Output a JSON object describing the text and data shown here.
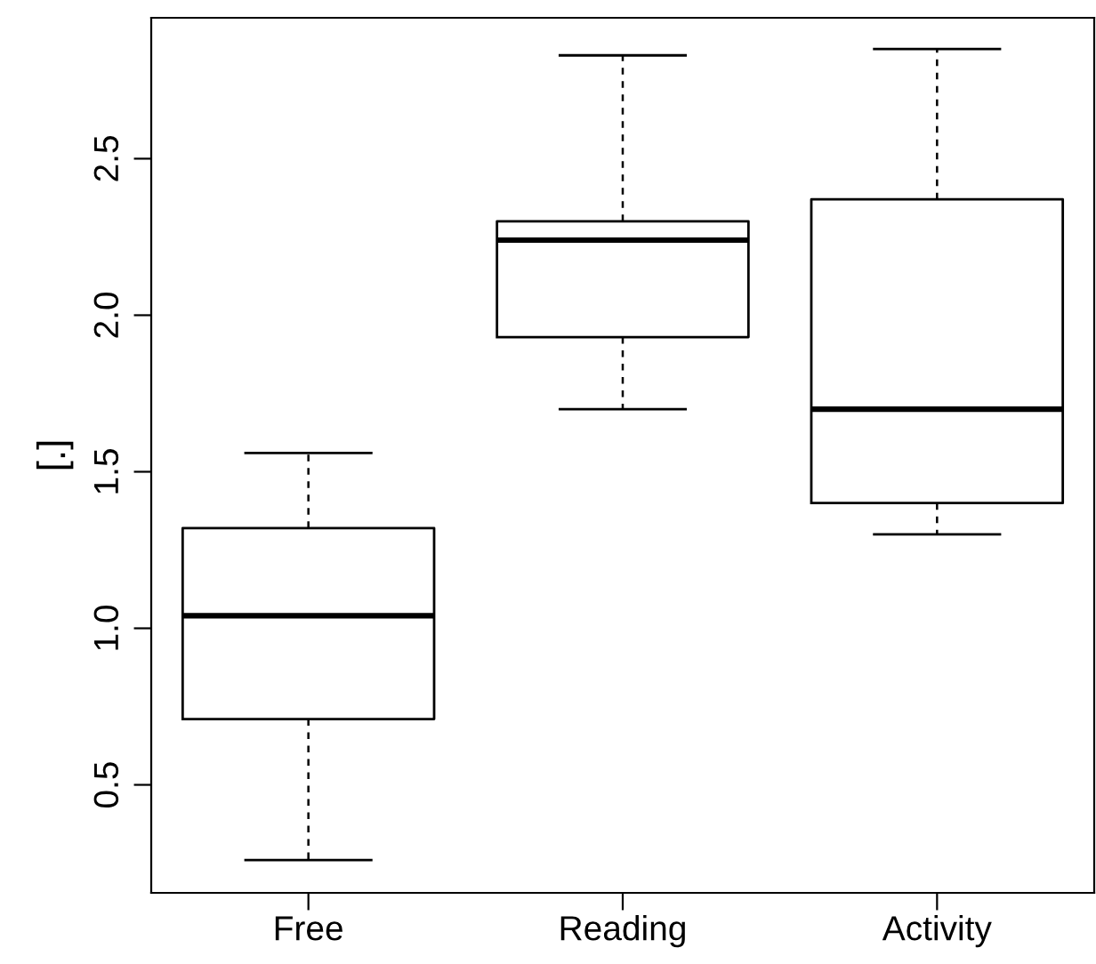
{
  "chart_data": {
    "type": "box",
    "ylabel": "[.]",
    "categories": [
      "Free",
      "Reading",
      "Activity"
    ],
    "boxes": [
      {
        "low": 0.26,
        "q1": 0.71,
        "median": 1.04,
        "q3": 1.32,
        "high": 1.56
      },
      {
        "low": 1.7,
        "q1": 1.93,
        "median": 2.24,
        "q3": 2.3,
        "high": 2.83
      },
      {
        "low": 1.3,
        "q1": 1.4,
        "median": 1.7,
        "q3": 2.37,
        "high": 2.85
      }
    ],
    "ylim": [
      0.155,
      2.95
    ],
    "yticks": [
      0.5,
      {
        "value": 1,
        "label": "1.0"
      },
      1.5,
      {
        "value": 2,
        "label": "2.0"
      },
      2.5
    ],
    "grid": false,
    "color": "#000000"
  }
}
